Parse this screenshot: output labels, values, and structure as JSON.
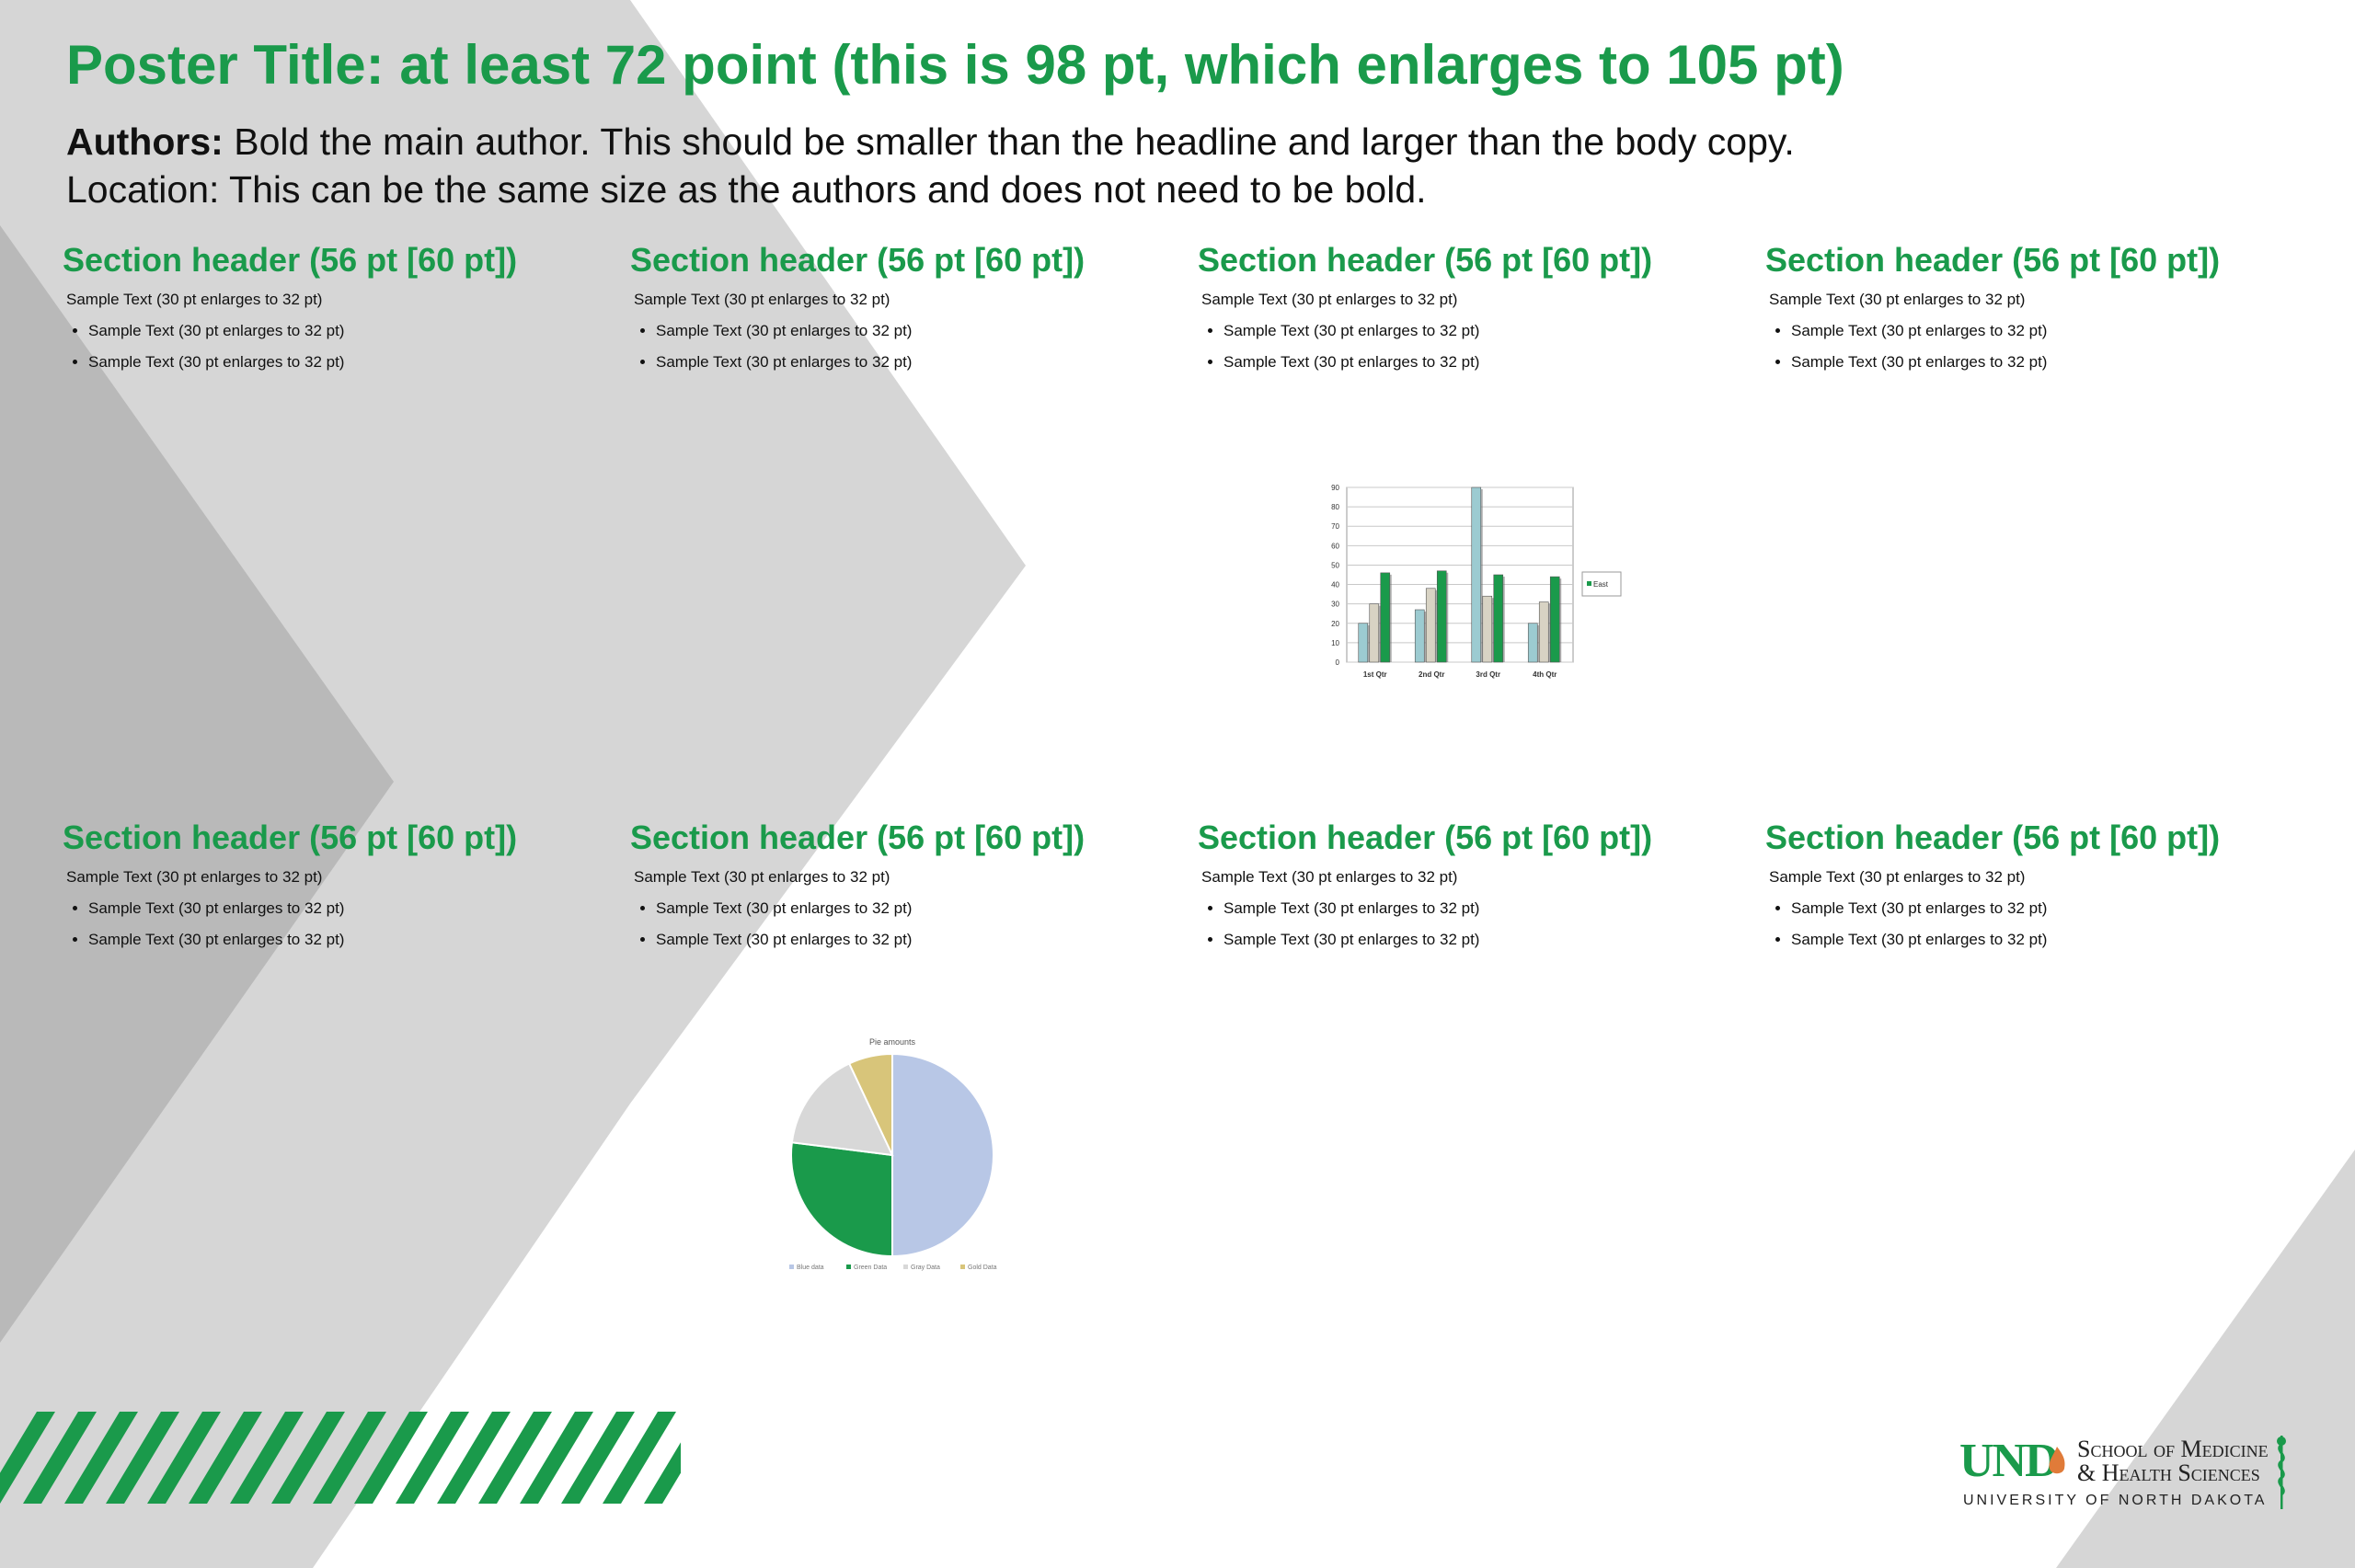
{
  "poster": {
    "title": "Poster Title: at least 72 point (this is 98 pt, which enlarges to 105 pt)",
    "authors_label": "Authors:",
    "authors_text": "Bold the main author. This should be smaller than the headline and larger than the body copy.",
    "location": "Location: This can be the same size as the authors and does not need to be bold."
  },
  "sections": [
    {
      "header": "Section header (56 pt [60 pt])",
      "text": "Sample Text (30 pt enlarges to 32 pt)",
      "bullets": [
        "Sample Text (30 pt enlarges to 32 pt)",
        "Sample Text (30 pt enlarges to 32 pt)"
      ]
    },
    {
      "header": "Section header (56 pt [60 pt])",
      "text": "Sample Text (30 pt enlarges to 32 pt)",
      "bullets": [
        "Sample Text (30 pt enlarges to 32 pt)",
        "Sample Text (30 pt enlarges to 32 pt)"
      ]
    },
    {
      "header": "Section header (56 pt [60 pt])",
      "text": "Sample Text (30 pt enlarges to 32 pt)",
      "bullets": [
        "Sample Text (30 pt enlarges to 32 pt)",
        "Sample Text (30 pt enlarges to 32 pt)"
      ]
    },
    {
      "header": "Section header (56 pt [60 pt])",
      "text": "Sample Text (30 pt enlarges to 32 pt)",
      "bullets": [
        "Sample Text (30 pt enlarges to 32 pt)",
        "Sample Text (30 pt enlarges to 32 pt)"
      ]
    },
    {
      "header": "Section header (56 pt [60 pt])",
      "text": "Sample Text (30 pt enlarges to 32 pt)",
      "bullets": [
        "Sample Text (30 pt enlarges to 32 pt)",
        "Sample Text (30 pt enlarges to 32 pt)"
      ]
    },
    {
      "header": "Section header (56 pt [60 pt])",
      "text": "Sample Text (30 pt enlarges to 32 pt)",
      "bullets": [
        "Sample Text (30 pt enlarges to 32 pt)",
        "Sample Text (30 pt enlarges to 32 pt)"
      ]
    },
    {
      "header": "Section header (56 pt [60 pt])",
      "text": "Sample Text (30 pt enlarges to 32 pt)",
      "bullets": [
        "Sample Text (30 pt enlarges to 32 pt)",
        "Sample Text (30 pt enlarges to 32 pt)"
      ]
    },
    {
      "header": "Section header (56 pt [60 pt])",
      "text": "Sample Text (30 pt enlarges to 32 pt)",
      "bullets": [
        "Sample Text (30 pt enlarges to 32 pt)",
        "Sample Text (30 pt enlarges to 32 pt)"
      ]
    }
  ],
  "colors": {
    "brand_green": "#1a9a4b",
    "light_gray": "#d6d6d6",
    "mid_gray": "#bcbcbc",
    "dark_gray": "#aaaaaa"
  },
  "chart_data": [
    {
      "type": "bar",
      "title": "",
      "categories": [
        "1st Qtr",
        "2nd Qtr",
        "3rd Qtr",
        "4th Qtr"
      ],
      "series": [
        {
          "values": [
            20,
            27,
            90,
            20
          ],
          "color": "#9ccbd1"
        },
        {
          "values": [
            30,
            38,
            34,
            31
          ],
          "color": "#d8d3c4"
        },
        {
          "values": [
            46,
            47,
            45,
            44
          ],
          "color": "#1a9a4b"
        }
      ],
      "legend": [
        "East"
      ],
      "legend_position": "right",
      "ylim": [
        0,
        90
      ],
      "yticks": [
        0,
        10,
        20,
        30,
        40,
        50,
        60,
        70,
        80,
        90
      ],
      "grid": true
    },
    {
      "type": "pie",
      "title": "Pie amounts",
      "categories": [
        "Blue data",
        "Green Data",
        "Gray Data",
        "Gold Data"
      ],
      "values": [
        50,
        27,
        16,
        7
      ],
      "colors": [
        "#b8c7e6",
        "#1a9a4b",
        "#d8d8d8",
        "#d8c57a"
      ],
      "legend_position": "bottom"
    }
  ],
  "logo": {
    "mark": "UND",
    "line1": "School of Medicine",
    "line2": "& Health Sciences",
    "line3": "UNIVERSITY OF NORTH DAKOTA",
    "icons": [
      "flame-icon",
      "caduceus-icon"
    ]
  }
}
